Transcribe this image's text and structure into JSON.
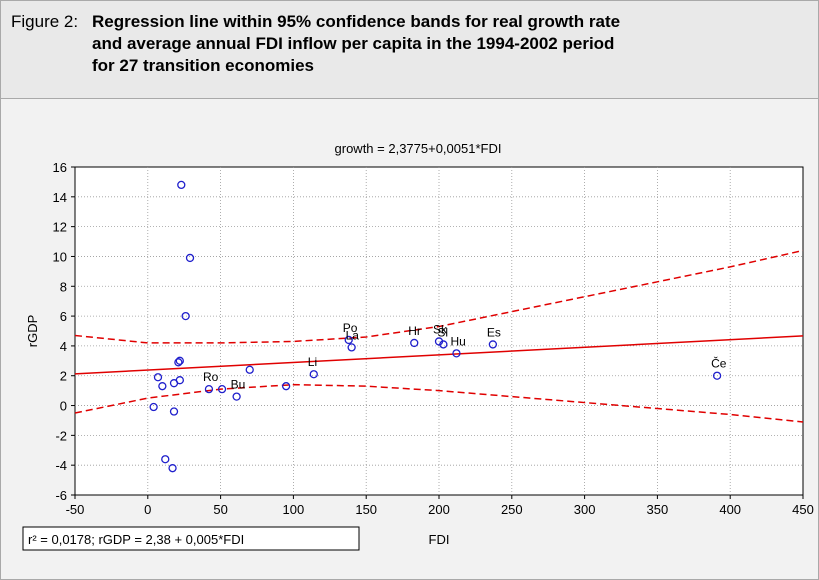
{
  "figure": {
    "label": "Figure 2:",
    "title_lines": [
      "Regression line within 95% confidence bands for real growth rate",
      "and average annual FDI inflow per capita in the 1994-2002 period",
      "for 27 transition economies"
    ]
  },
  "chart_data": {
    "type": "scatter",
    "title": "growth = 2,3775+0,0051*FDI",
    "xlabel": "FDI",
    "ylabel": "rGDP",
    "xlim": [
      -50,
      450
    ],
    "ylim": [
      -6,
      16
    ],
    "xticks": [
      -50,
      0,
      50,
      100,
      150,
      200,
      250,
      300,
      350,
      400,
      450
    ],
    "yticks": [
      -6,
      -4,
      -2,
      0,
      2,
      4,
      6,
      8,
      10,
      12,
      14,
      16
    ],
    "grid": true,
    "points": [
      {
        "x": 4,
        "y": -0.1,
        "label": ""
      },
      {
        "x": 7,
        "y": 1.9,
        "label": ""
      },
      {
        "x": 10,
        "y": 1.3,
        "label": ""
      },
      {
        "x": 12,
        "y": -3.6,
        "label": ""
      },
      {
        "x": 17,
        "y": -4.2,
        "label": ""
      },
      {
        "x": 18,
        "y": -0.4,
        "label": ""
      },
      {
        "x": 18,
        "y": 1.5,
        "label": ""
      },
      {
        "x": 21,
        "y": 2.9,
        "label": ""
      },
      {
        "x": 22,
        "y": 3.0,
        "label": ""
      },
      {
        "x": 22,
        "y": 1.7,
        "label": ""
      },
      {
        "x": 23,
        "y": 14.8,
        "label": ""
      },
      {
        "x": 26,
        "y": 6.0,
        "label": ""
      },
      {
        "x": 29,
        "y": 9.9,
        "label": ""
      },
      {
        "x": 42,
        "y": 1.1,
        "label": "Ro"
      },
      {
        "x": 51,
        "y": 1.1,
        "label": ""
      },
      {
        "x": 61,
        "y": 0.6,
        "label": "Bu"
      },
      {
        "x": 70,
        "y": 2.4,
        "label": ""
      },
      {
        "x": 95,
        "y": 1.3,
        "label": ""
      },
      {
        "x": 114,
        "y": 2.1,
        "label": "Li"
      },
      {
        "x": 138,
        "y": 4.4,
        "label": "Po"
      },
      {
        "x": 140,
        "y": 3.9,
        "label": "La"
      },
      {
        "x": 183,
        "y": 4.2,
        "label": "Hr"
      },
      {
        "x": 200,
        "y": 4.3,
        "label": "Sk"
      },
      {
        "x": 203,
        "y": 4.1,
        "label": "Sl"
      },
      {
        "x": 212,
        "y": 3.5,
        "label": "Hu"
      },
      {
        "x": 237,
        "y": 4.1,
        "label": "Es"
      },
      {
        "x": 391,
        "y": 2.0,
        "label": "Če"
      }
    ],
    "regression": {
      "intercept": 2.3775,
      "slope": 0.0051
    },
    "confidence_band": {
      "x": [
        -50,
        0,
        50,
        100,
        150,
        200,
        250,
        300,
        350,
        400,
        450
      ],
      "upper": [
        4.7,
        4.2,
        4.2,
        4.3,
        4.6,
        5.3,
        6.3,
        7.3,
        8.3,
        9.3,
        10.4
      ],
      "lower": [
        -0.5,
        0.5,
        1.1,
        1.4,
        1.3,
        1.0,
        0.6,
        0.2,
        -0.2,
        -0.6,
        -1.1
      ]
    },
    "annotation": "r² = 0,0178;  rGDP = 2,38 + 0,005*FDI",
    "colors": {
      "points": "#1f1fcc",
      "regression": "#e00000",
      "bands": "#e00000",
      "grid": "#9a9a9a"
    }
  }
}
